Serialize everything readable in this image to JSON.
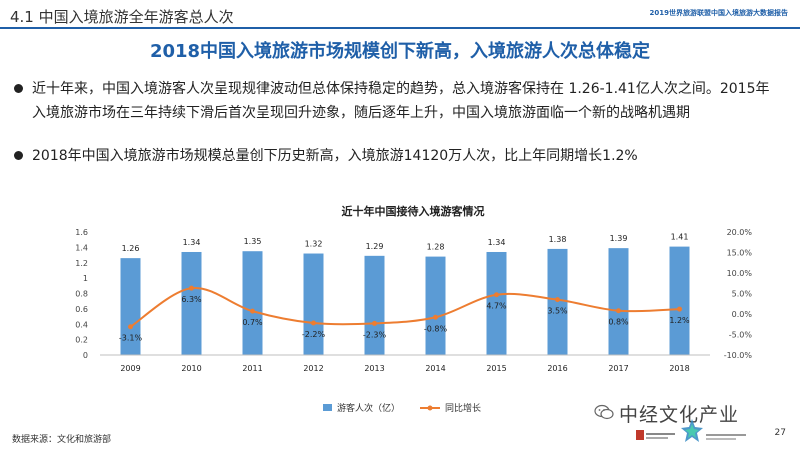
{
  "header": {
    "section_title": "4.1 中国入境旅游全年游客总人次",
    "report_name": "2019世界旅游联盟中国入境旅游大数据报告"
  },
  "headline": "2018中国入境旅游市场规模创下新高，入境旅游人次总体稳定",
  "bullets": [
    "近十年来，中国入境游客人次呈现规律波动但总体保持稳定的趋势，总入境游客保持在 1.26-1.41亿人次之间。2015年入境旅游市场在三年持续下滑后首次呈现回升迹象，随后逐年上升，中国入境旅游面临一个新的战略机遇期",
    "2018年中国入境旅游市场规模总量创下历史新高，入境旅游14120万人次，比上年同期增长1.2%"
  ],
  "footer": {
    "source": "数据来源：文化和旅游部",
    "watermark": "中经文化产业",
    "page_number": "27"
  },
  "colors": {
    "accent": "#1f5fa8",
    "bar": "#5b9bd5",
    "line": "#ed7d31"
  },
  "chart_data": {
    "type": "bar",
    "title": "近十年中国接待入境游客情况",
    "categories": [
      "2009",
      "2010",
      "2011",
      "2012",
      "2013",
      "2014",
      "2015",
      "2016",
      "2017",
      "2018"
    ],
    "series": [
      {
        "name": "游客人次（亿）",
        "type": "bar",
        "axis": "left",
        "values": [
          1.26,
          1.34,
          1.35,
          1.32,
          1.29,
          1.28,
          1.34,
          1.38,
          1.39,
          1.41
        ],
        "labels": [
          "1.26",
          "1.34",
          "1.35",
          "1.32",
          "1.29",
          "1.28",
          "1.34",
          "1.38",
          "1.39",
          "1.41"
        ]
      },
      {
        "name": "同比增长",
        "type": "line",
        "axis": "right",
        "values": [
          -3.1,
          6.3,
          0.7,
          -2.2,
          -2.3,
          -0.8,
          4.7,
          3.5,
          0.8,
          1.2
        ],
        "labels": [
          "-3.1%",
          "6.3%",
          "0.7%",
          "-2.2%",
          "-2.3%",
          "-0.8%",
          "4.7%",
          "3.5%",
          "0.8%",
          "1.2%"
        ]
      }
    ],
    "y_left": {
      "ylim": [
        0,
        1.6
      ],
      "ticks": [
        "0",
        "0.2",
        "0.4",
        "0.6",
        "0.8",
        "1",
        "1.2",
        "1.4",
        "1.6"
      ]
    },
    "y_right": {
      "ylim": [
        -10,
        20
      ],
      "ticks": [
        "-10.0%",
        "-5.0%",
        "0.0%",
        "5.0%",
        "10.0%",
        "15.0%",
        "20.0%"
      ]
    },
    "grid": false,
    "legend_position": "bottom"
  }
}
